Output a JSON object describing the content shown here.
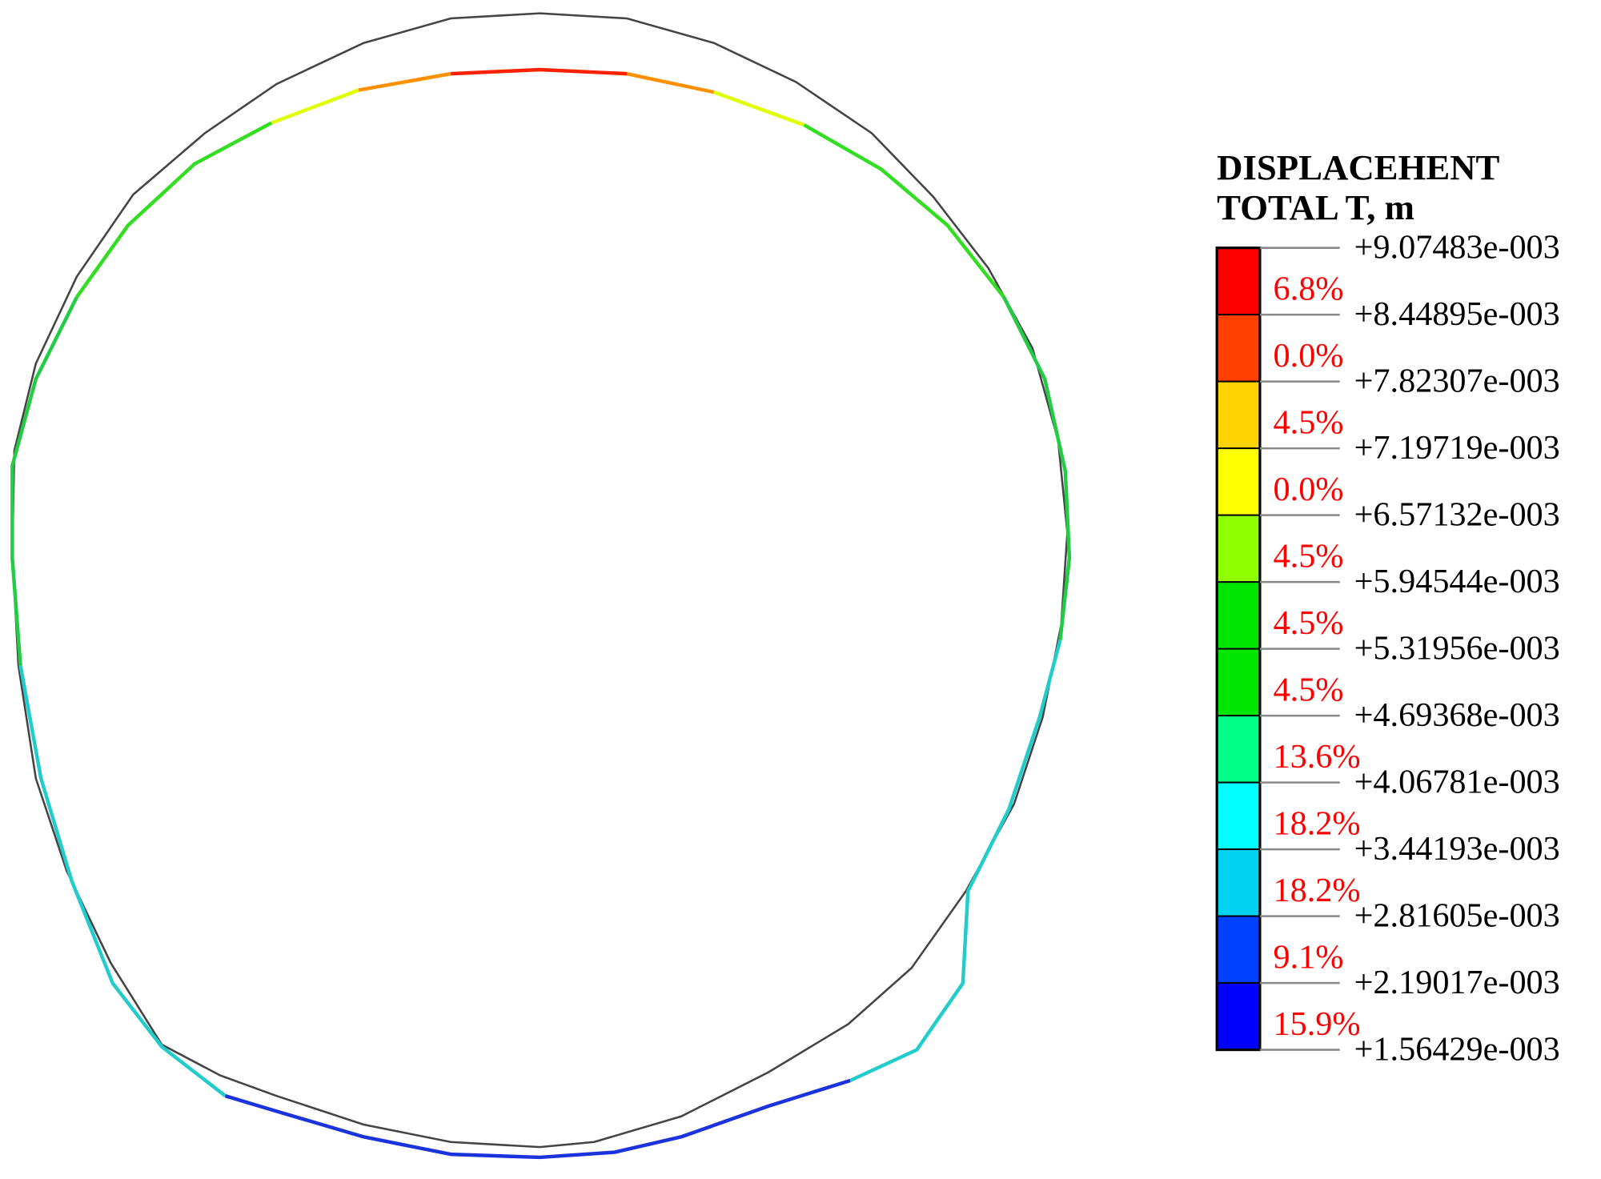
{
  "legend": {
    "title": [
      "DISPLACEHENT",
      "TOTAL T, m"
    ],
    "levels": [
      "+9.07483e-003",
      "+8.44895e-003",
      "+7.82307e-003",
      "+7.19719e-003",
      "+6.57132e-003",
      "+5.94544e-003",
      "+5.31956e-003",
      "+4.69368e-003",
      "+4.06781e-003",
      "+3.44193e-003",
      "+2.81605e-003",
      "+2.19017e-003",
      "+1.56429e-003"
    ],
    "bands": [
      {
        "color": "#ff0000",
        "percent": "6.8%"
      },
      {
        "color": "#ff4000",
        "percent": "0.0%"
      },
      {
        "color": "#ffd200",
        "percent": "4.5%"
      },
      {
        "color": "#ffff00",
        "percent": "0.0%"
      },
      {
        "color": "#90ff00",
        "percent": "4.5%"
      },
      {
        "color": "#00e600",
        "percent": "4.5%"
      },
      {
        "color": "#00e600",
        "percent": "4.5%"
      },
      {
        "color": "#00ff88",
        "percent": "13.6%"
      },
      {
        "color": "#00ffff",
        "percent": "18.2%"
      },
      {
        "color": "#00d2f0",
        "percent": "18.2%"
      },
      {
        "color": "#0040ff",
        "percent": "9.1%"
      },
      {
        "color": "#0000ff",
        "percent": "15.9%"
      }
    ]
  }
}
